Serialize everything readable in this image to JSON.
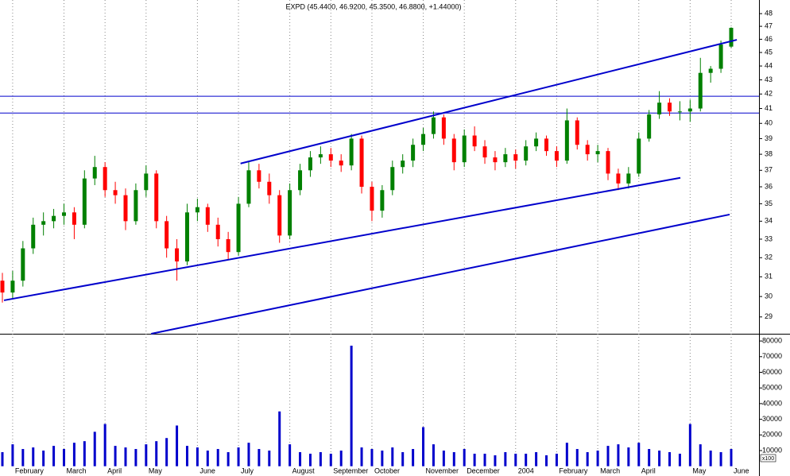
{
  "chart_data": {
    "type": "candlestick",
    "title": "EXPD (45.4400, 46.9200, 45.3500, 46.8800, +1.44000)",
    "categories": [
      null,
      "February",
      null,
      null,
      null,
      null,
      "March",
      null,
      null,
      null,
      "April",
      null,
      null,
      null,
      "May",
      null,
      null,
      null,
      null,
      "June",
      null,
      null,
      null,
      "July",
      null,
      null,
      null,
      null,
      "August",
      null,
      null,
      null,
      "September",
      null,
      null,
      null,
      "October",
      null,
      null,
      null,
      null,
      "November",
      null,
      null,
      null,
      "December",
      null,
      null,
      null,
      null,
      "2004",
      null,
      null,
      null,
      "February",
      null,
      null,
      null,
      "March",
      null,
      null,
      null,
      "April",
      null,
      null,
      null,
      null,
      "May",
      null,
      null,
      null,
      "June"
    ],
    "open": [
      30.8,
      30.2,
      30.8,
      32.5,
      33.8,
      34.0,
      34.3,
      34.5,
      33.8,
      36.5,
      37.2,
      35.8,
      35.5,
      34.0,
      35.8,
      36.8,
      34.0,
      32.5,
      31.8,
      34.5,
      34.8,
      33.8,
      33.0,
      32.3,
      35.0,
      37.0,
      36.3,
      35.5,
      33.2,
      35.8,
      37.0,
      37.8,
      38.0,
      37.6,
      37.3,
      39.0,
      36.0,
      34.6,
      35.8,
      37.2,
      37.6,
      38.6,
      39.3,
      40.4,
      39.0,
      37.5,
      39.2,
      38.5,
      37.8,
      37.5,
      38.0,
      37.6,
      38.5,
      39.0,
      38.2,
      37.6,
      40.2,
      38.6,
      38.0,
      38.2,
      36.8,
      36.2,
      36.8,
      39.0,
      40.6,
      41.4,
      40.8,
      40.8,
      41.0,
      43.5,
      43.8,
      45.44
    ],
    "high": [
      31.2,
      31.3,
      32.9,
      34.2,
      34.5,
      34.7,
      35.0,
      34.8,
      37.0,
      37.9,
      37.5,
      36.3,
      35.9,
      36.2,
      37.3,
      37.0,
      34.3,
      33.0,
      35.0,
      35.3,
      35.0,
      34.2,
      33.4,
      35.4,
      37.5,
      37.4,
      36.8,
      35.8,
      36.2,
      37.4,
      38.2,
      38.5,
      38.4,
      38.0,
      39.3,
      39.2,
      36.3,
      36.1,
      37.6,
      38.0,
      39.0,
      39.7,
      40.8,
      40.6,
      39.3,
      39.6,
      39.8,
      38.9,
      38.2,
      38.4,
      38.3,
      38.9,
      39.4,
      39.2,
      38.5,
      41.0,
      40.4,
      38.9,
      38.6,
      38.4,
      37.1,
      37.2,
      39.4,
      40.9,
      42.2,
      41.7,
      41.5,
      41.6,
      44.6,
      44.0,
      45.9,
      46.92
    ],
    "low": [
      29.7,
      29.9,
      30.5,
      32.2,
      33.2,
      33.6,
      33.8,
      33.0,
      33.6,
      36.1,
      35.4,
      35.0,
      33.5,
      33.8,
      35.4,
      33.6,
      32.0,
      30.8,
      31.6,
      34.0,
      33.4,
      32.6,
      31.9,
      32.1,
      34.8,
      35.9,
      35.0,
      32.8,
      33.0,
      35.5,
      36.6,
      37.4,
      37.2,
      36.9,
      37.0,
      35.6,
      34.0,
      34.2,
      35.5,
      36.8,
      37.2,
      38.2,
      39.0,
      38.6,
      37.0,
      37.2,
      38.2,
      37.4,
      37.0,
      37.2,
      37.1,
      37.3,
      38.2,
      37.9,
      37.2,
      37.4,
      38.3,
      37.6,
      37.5,
      36.4,
      35.8,
      35.9,
      36.6,
      38.8,
      40.3,
      40.5,
      40.2,
      40.1,
      40.8,
      42.8,
      43.5,
      45.35
    ],
    "close": [
      30.2,
      30.8,
      32.5,
      33.8,
      34.0,
      34.3,
      34.5,
      33.8,
      36.5,
      37.2,
      35.8,
      35.5,
      34.0,
      35.8,
      36.8,
      34.0,
      32.5,
      31.8,
      34.5,
      34.8,
      33.8,
      33.0,
      32.3,
      35.0,
      37.0,
      36.3,
      35.5,
      33.2,
      35.8,
      37.0,
      37.8,
      38.0,
      37.6,
      37.3,
      39.0,
      36.0,
      34.6,
      35.8,
      37.2,
      37.6,
      38.6,
      39.3,
      40.4,
      39.0,
      37.5,
      39.2,
      38.5,
      37.8,
      37.5,
      38.0,
      37.6,
      38.5,
      39.0,
      38.2,
      37.6,
      40.2,
      38.6,
      38.0,
      38.2,
      36.8,
      36.2,
      36.8,
      39.0,
      40.6,
      41.4,
      40.8,
      40.8,
      41.0,
      43.5,
      43.8,
      45.6,
      46.88
    ],
    "up_color": "#008000",
    "down_color": "#ff0000",
    "ylim": [
      28.2,
      49.1
    ],
    "yticks": [
      29,
      30,
      31,
      32,
      33,
      34,
      35,
      36,
      37,
      38,
      39,
      40,
      41,
      42,
      43,
      44,
      45,
      46,
      47,
      48
    ],
    "log_scale": true,
    "hlines": [
      41.84,
      40.69
    ],
    "line_color": "#0000cc",
    "trendlines": [
      {
        "x": [
          0.16,
          66.05
        ],
        "y": [
          29.81,
          36.54
        ]
      },
      {
        "x": [
          23.2,
          71.55
        ],
        "y": [
          37.42,
          45.96
        ]
      },
      {
        "x": [
          14.5,
          70.85
        ],
        "y": [
          28.2,
          34.38
        ]
      }
    ],
    "volume": {
      "values": [
        9000,
        14000,
        11000,
        12000,
        10000,
        13000,
        11000,
        15000,
        16000,
        22000,
        27000,
        13000,
        12000,
        11000,
        14000,
        16000,
        18000,
        26000,
        13000,
        12000,
        10000,
        11000,
        9000,
        12000,
        15000,
        11000,
        10000,
        35000,
        14000,
        9000,
        8000,
        9000,
        8000,
        10000,
        77000,
        12000,
        11000,
        10000,
        12000,
        9000,
        11000,
        25000,
        14000,
        10000,
        9000,
        11000,
        8000,
        8000,
        7000,
        9000,
        8000,
        8000,
        9000,
        7000,
        8000,
        15000,
        11000,
        9000,
        10000,
        13000,
        14000,
        12000,
        15000,
        11000,
        10000,
        9000,
        8000,
        27000,
        14000,
        10000,
        9000,
        11000
      ],
      "color": "#0000cc",
      "ylim": [
        0,
        83600
      ],
      "yticks": [
        10000,
        20000,
        30000,
        40000,
        50000,
        60000,
        70000,
        80000
      ],
      "label": "x100"
    }
  }
}
